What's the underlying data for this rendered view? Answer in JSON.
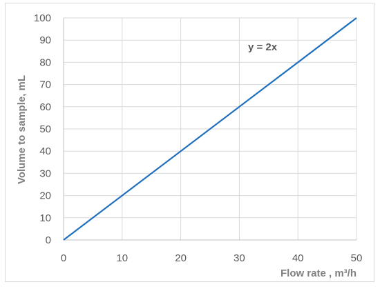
{
  "chart_data": {
    "type": "line",
    "xlabel": "Flow rate , m³/h",
    "ylabel": "Volume to sample, mL",
    "xlim": [
      0,
      50
    ],
    "ylim": [
      0,
      100
    ],
    "xticks": [
      "0",
      "10",
      "20",
      "30",
      "40",
      "50"
    ],
    "yticks": [
      "0",
      "10",
      "20",
      "30",
      "40",
      "50",
      "60",
      "70",
      "80",
      "90",
      "100"
    ],
    "grid": true,
    "series": [
      {
        "x": [
          0,
          50
        ],
        "y": [
          0,
          100
        ],
        "color": "#1f6fbf"
      }
    ],
    "annotation": "y = 2x"
  }
}
